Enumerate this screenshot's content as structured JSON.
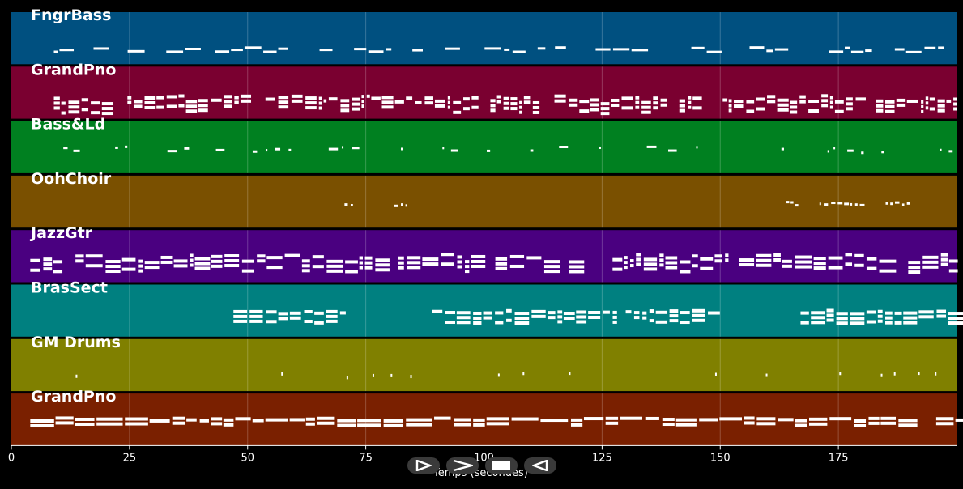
{
  "chart_data": {
    "type": "piano-roll",
    "xlabel": "Temps (secondes)",
    "xlim": [
      0,
      200
    ],
    "x_ticks": [
      0,
      25,
      50,
      75,
      100,
      125,
      150,
      175
    ],
    "grid": true,
    "tracks": [
      {
        "name": "FngrBass",
        "color": "#005080",
        "density": 0.55,
        "style": "line-low",
        "segments": [
          [
            9,
            200
          ]
        ]
      },
      {
        "name": "GrandPno",
        "color": "#7a0030",
        "density": 0.9,
        "style": "chords",
        "segments": [
          [
            9,
            200
          ]
        ]
      },
      {
        "name": "Bass&Ld",
        "color": "#008020",
        "density": 0.5,
        "style": "scatter-mid",
        "segments": [
          [
            11,
            200
          ]
        ]
      },
      {
        "name": "OohChoir",
        "color": "#7a5000",
        "density": 0.8,
        "style": "sparse",
        "segments": [
          [
            70.5,
            72
          ],
          [
            81,
            83.5
          ],
          [
            164,
            166
          ],
          [
            171,
            181
          ],
          [
            185,
            190
          ]
        ]
      },
      {
        "name": "JazzGtr",
        "color": "#4a0080",
        "density": 0.95,
        "style": "dense",
        "segments": [
          [
            4,
            200
          ]
        ]
      },
      {
        "name": "BrasSect",
        "color": "#008080",
        "density": 0.85,
        "style": "blocks",
        "segments": [
          [
            47,
            70
          ],
          [
            89,
            128
          ],
          [
            130,
            149
          ],
          [
            167,
            200
          ]
        ]
      },
      {
        "name": "GM Drums",
        "color": "#808000",
        "density": 0.25,
        "style": "ticks",
        "segments": [
          [
            4,
            200
          ]
        ]
      },
      {
        "name": "GrandPno",
        "color": "#7a2000",
        "density": 0.95,
        "style": "bass-lines",
        "segments": [
          [
            4,
            200
          ]
        ]
      }
    ]
  },
  "controls": {
    "play": "play-icon",
    "next": "next-icon",
    "stop": "stop-icon",
    "rewind": "rewind-icon"
  }
}
